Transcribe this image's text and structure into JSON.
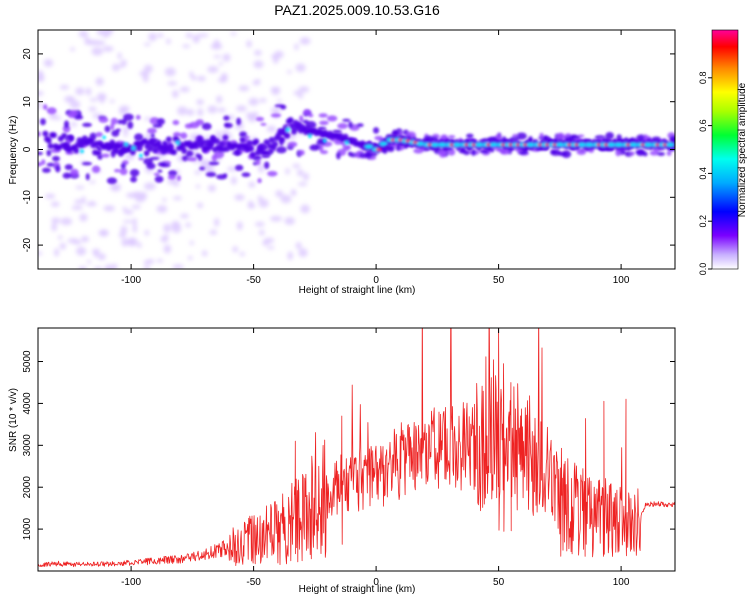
{
  "figure_title": "PAZ1.2025.009.10.53.G16",
  "colors": {
    "snr_line": "#ee2222",
    "track_core": "#ff1515",
    "track_mid": "#00e1ff",
    "track_low": "#4f00e6",
    "scatter": "#9a4dff",
    "scatter_faint": "#dcc8ff"
  },
  "chart_data": [
    {
      "type": "heatmap",
      "title": "PAZ1.2025.009.10.53.G16",
      "xlabel": "Height of straight line (km)",
      "ylabel": "Frequency (Hz)",
      "xlim": [
        -138,
        122
      ],
      "ylim": [
        -25,
        25
      ],
      "xticks": [
        -100,
        -50,
        0,
        50,
        100
      ],
      "yticks": [
        -20,
        -10,
        0,
        10,
        20
      ],
      "grid": false,
      "colorbar": {
        "label": "Normalized spectral amplitude",
        "range": [
          0,
          1
        ],
        "ticks": [
          0.0,
          0.2,
          0.4,
          0.6,
          0.8
        ],
        "colormap": "white-violet-blue-cyan-green-yellow-red-magenta"
      },
      "dominant_frequency_track": {
        "x": [
          -135,
          -120,
          -100,
          -80,
          -60,
          -45,
          -35,
          -28,
          -20,
          -10,
          -5,
          0,
          5,
          10,
          20,
          40,
          60,
          80,
          95,
          105,
          122
        ],
        "y": [
          2,
          1,
          0,
          1,
          1,
          0,
          5,
          4,
          3,
          2,
          1,
          0,
          2,
          2,
          1,
          1,
          1,
          1,
          1,
          1,
          1
        ],
        "peak_amplitude_region_x": [
          -5,
          120
        ]
      }
    },
    {
      "type": "line",
      "title": "",
      "xlabel": "Height of straight line (km)",
      "ylabel": "SNR (10 * v/v)",
      "xlim": [
        -138,
        122
      ],
      "ylim": [
        0,
        5800
      ],
      "xticks": [
        -100,
        -50,
        0,
        50,
        100
      ],
      "yticks": [
        1000,
        2000,
        3000,
        4000,
        5000
      ],
      "grid": false,
      "series": [
        {
          "x": [
            -138,
            -130,
            -120,
            -110,
            -100,
            -90,
            -80,
            -70,
            -60,
            -55,
            -50,
            -45,
            -40,
            -35,
            -30,
            -25,
            -20,
            -15,
            -10,
            -5,
            0,
            5,
            10,
            15,
            20,
            25,
            30,
            35,
            40,
            45,
            48,
            50,
            52,
            55,
            60,
            65,
            70,
            75,
            80,
            85,
            90,
            95,
            100,
            105,
            108,
            110,
            115,
            122
          ],
          "y": [
            150,
            180,
            160,
            170,
            200,
            250,
            300,
            400,
            600,
            700,
            800,
            900,
            1100,
            1300,
            1500,
            1700,
            1900,
            2100,
            2200,
            2300,
            2400,
            2550,
            2700,
            2800,
            2900,
            3000,
            3050,
            3100,
            3100,
            3150,
            3200,
            3250,
            3150,
            3200,
            3000,
            2800,
            2400,
            1900,
            1600,
            1500,
            1400,
            1300,
            1250,
            1150,
            1300,
            1600,
            1600,
            1600
          ],
          "spikes": [
            {
              "x": -33,
              "y": 3100
            },
            {
              "x": -14,
              "y": 3700
            },
            {
              "x": 50,
              "y": 5800
            },
            {
              "x": 52,
              "y": 4950
            },
            {
              "x": 55,
              "y": 4500
            },
            {
              "x": 93,
              "y": 4050
            },
            {
              "x": 102,
              "y": 4100
            }
          ]
        }
      ]
    }
  ]
}
